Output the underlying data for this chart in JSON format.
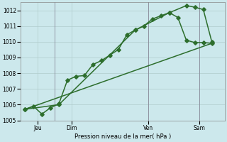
{
  "background_color": "#cce8ec",
  "grid_color": "#b0cccc",
  "line_color": "#2d6e2d",
  "xlabel": "Pression niveau de la mer( hPa )",
  "ylim": [
    1005,
    1012.5
  ],
  "yticks": [
    1005,
    1006,
    1007,
    1008,
    1009,
    1010,
    1011,
    1012
  ],
  "line1_x": [
    0,
    1,
    2,
    3,
    4,
    5,
    6,
    7,
    8,
    9,
    10,
    11,
    12,
    13,
    14,
    15,
    16,
    17,
    18,
    19,
    20,
    21,
    22
  ],
  "line1_y": [
    1005.7,
    1005.9,
    1005.4,
    1005.8,
    1006.05,
    1007.55,
    1007.8,
    1007.85,
    1008.55,
    1008.8,
    1009.15,
    1009.5,
    1010.45,
    1010.75,
    1011.0,
    1011.45,
    1011.65,
    1011.85,
    1011.55,
    1010.1,
    1009.95,
    1009.95,
    1009.9
  ],
  "line2_x": [
    0,
    22
  ],
  "line2_y": [
    1005.7,
    1009.9
  ],
  "line3_x": [
    0,
    4,
    13,
    17,
    19,
    20,
    21,
    22
  ],
  "line3_y": [
    1005.7,
    1006.0,
    1010.75,
    1011.85,
    1012.3,
    1012.2,
    1012.05,
    1010.0
  ],
  "vline_x": [
    3.5,
    14.5,
    20.5
  ],
  "xtick_positions": [
    1.5,
    5.5,
    14.5,
    20.5
  ],
  "xtick_labels": [
    "Jeu",
    "Dim",
    "Ven",
    "Sam"
  ],
  "xlim": [
    -0.5,
    23.5
  ],
  "marker_size": 2.8,
  "linewidth": 1.1,
  "xlabel_fontsize": 6.0,
  "tick_fontsize": 5.5
}
